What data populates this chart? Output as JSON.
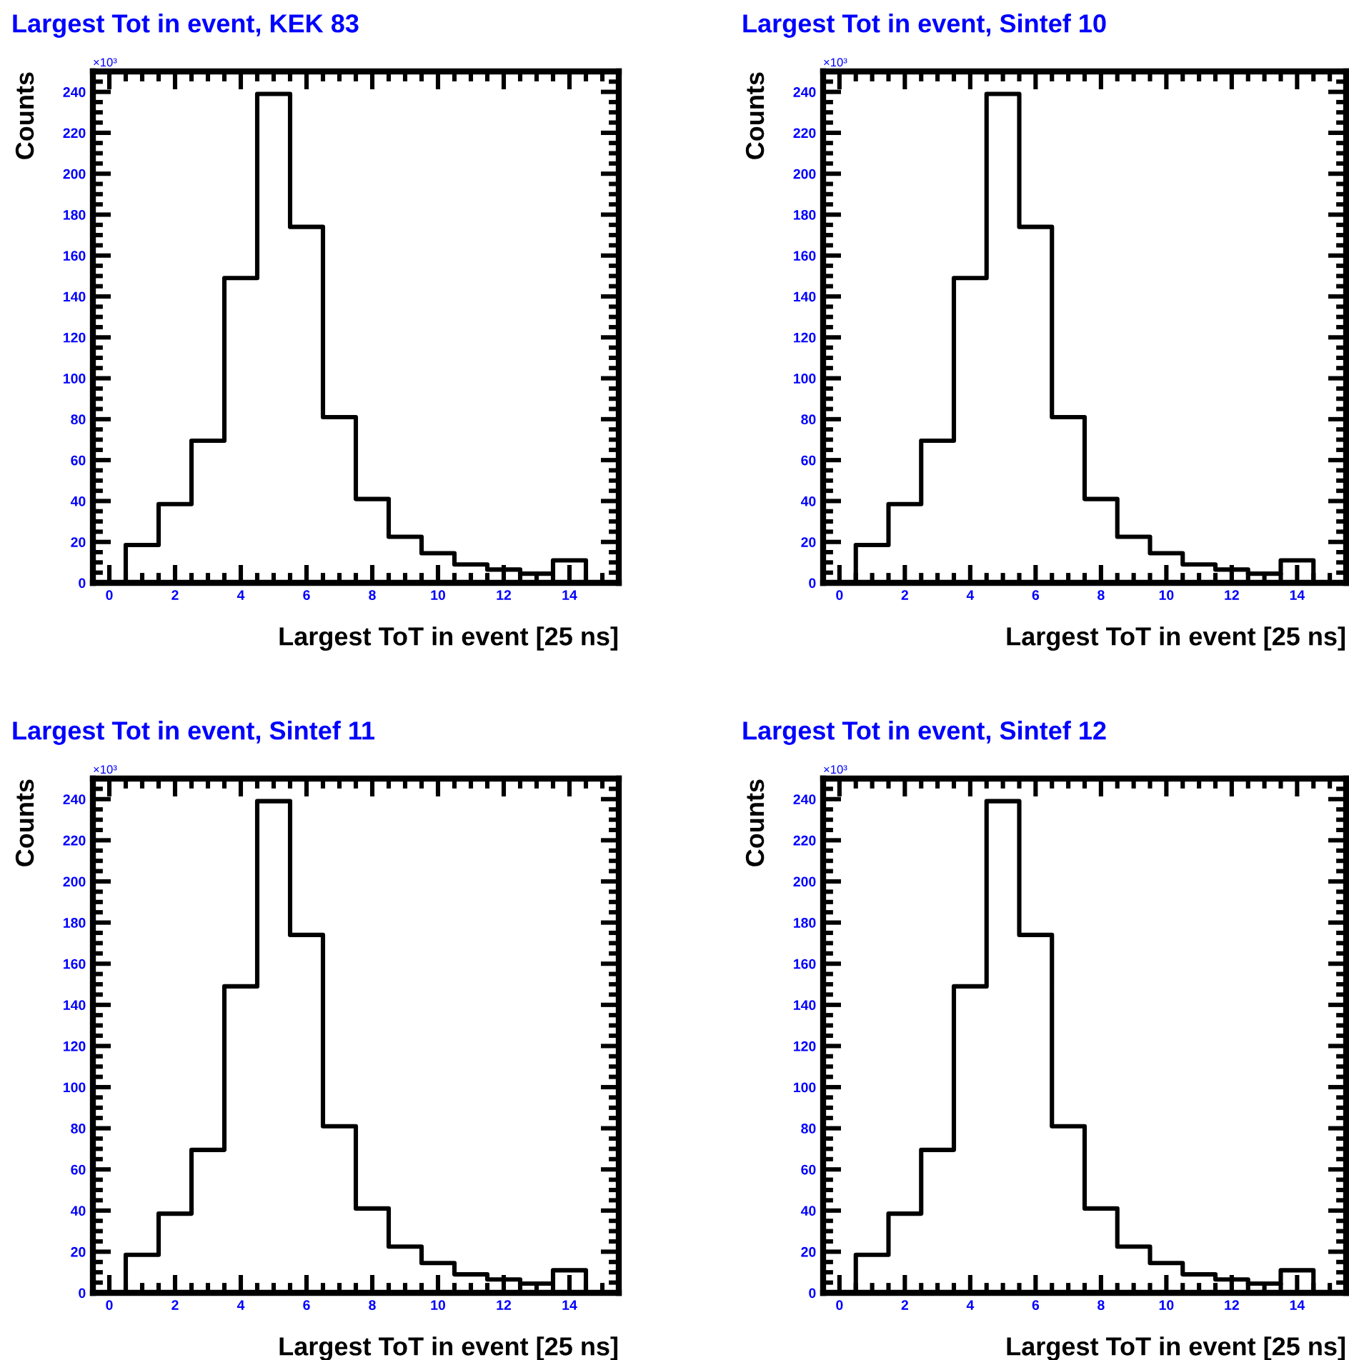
{
  "chart_data": [
    {
      "type": "histogram",
      "title": "Largest Tot in event, KEK 83",
      "xlabel": "Largest ToT in event [25 ns]",
      "ylabel": "Counts",
      "annotations": [
        "×10³"
      ],
      "color": "#000000",
      "bins": [
        0.5,
        1.5,
        2.5,
        3.5,
        4.5,
        5.5,
        6.5,
        7.5,
        8.5,
        9.5,
        10.5,
        11.5,
        12.5,
        13.5,
        14.5
      ],
      "values": [
        18.5,
        38.5,
        69.5,
        149,
        239,
        174,
        81,
        41,
        22.5,
        14.5,
        9,
        6.5,
        4.5,
        11
      ],
      "xlim": [
        -0.5,
        15.5
      ],
      "ylim": [
        0,
        250
      ],
      "xticks": [
        0,
        2,
        4,
        6,
        8,
        10,
        12,
        14
      ],
      "yticks": [
        0,
        20,
        40,
        60,
        80,
        100,
        120,
        140,
        160,
        180,
        200,
        220,
        240
      ],
      "grid": false
    },
    {
      "type": "histogram",
      "title": "Largest Tot in event, Sintef 10",
      "xlabel": "Largest ToT in event [25 ns]",
      "ylabel": "Counts",
      "annotations": [
        "×10³"
      ],
      "color": "#000000",
      "bins": [
        0.5,
        1.5,
        2.5,
        3.5,
        4.5,
        5.5,
        6.5,
        7.5,
        8.5,
        9.5,
        10.5,
        11.5,
        12.5,
        13.5,
        14.5
      ],
      "values": [
        18.5,
        38.5,
        69.5,
        149,
        239,
        174,
        81,
        41,
        22.5,
        14.5,
        9,
        6.5,
        4.5,
        11
      ],
      "xlim": [
        -0.5,
        15.5
      ],
      "ylim": [
        0,
        250
      ],
      "xticks": [
        0,
        2,
        4,
        6,
        8,
        10,
        12,
        14
      ],
      "yticks": [
        0,
        20,
        40,
        60,
        80,
        100,
        120,
        140,
        160,
        180,
        200,
        220,
        240
      ],
      "grid": false
    },
    {
      "type": "histogram",
      "title": "Largest Tot in event, Sintef 11",
      "xlabel": "Largest ToT in event [25 ns]",
      "ylabel": "Counts",
      "annotations": [
        "×10³"
      ],
      "color": "#000000",
      "bins": [
        0.5,
        1.5,
        2.5,
        3.5,
        4.5,
        5.5,
        6.5,
        7.5,
        8.5,
        9.5,
        10.5,
        11.5,
        12.5,
        13.5,
        14.5
      ],
      "values": [
        18.5,
        38.5,
        69.5,
        149,
        239,
        174,
        81,
        41,
        22.5,
        14.5,
        9,
        6.5,
        4.5,
        11
      ],
      "xlim": [
        -0.5,
        15.5
      ],
      "ylim": [
        0,
        250
      ],
      "xticks": [
        0,
        2,
        4,
        6,
        8,
        10,
        12,
        14
      ],
      "yticks": [
        0,
        20,
        40,
        60,
        80,
        100,
        120,
        140,
        160,
        180,
        200,
        220,
        240
      ],
      "grid": false
    },
    {
      "type": "histogram",
      "title": "Largest Tot in event, Sintef 12",
      "xlabel": "Largest ToT in event [25 ns]",
      "ylabel": "Counts",
      "annotations": [
        "×10³"
      ],
      "color": "#000000",
      "bins": [
        0.5,
        1.5,
        2.5,
        3.5,
        4.5,
        5.5,
        6.5,
        7.5,
        8.5,
        9.5,
        10.5,
        11.5,
        12.5,
        13.5,
        14.5
      ],
      "values": [
        18.5,
        38.5,
        69.5,
        149,
        239,
        174,
        81,
        41,
        22.5,
        14.5,
        9,
        6.5,
        4.5,
        11
      ],
      "xlim": [
        -0.5,
        15.5
      ],
      "ylim": [
        0,
        250
      ],
      "xticks": [
        0,
        2,
        4,
        6,
        8,
        10,
        12,
        14
      ],
      "yticks": [
        0,
        20,
        40,
        60,
        80,
        100,
        120,
        140,
        160,
        180,
        200,
        220,
        240
      ],
      "grid": false
    }
  ]
}
